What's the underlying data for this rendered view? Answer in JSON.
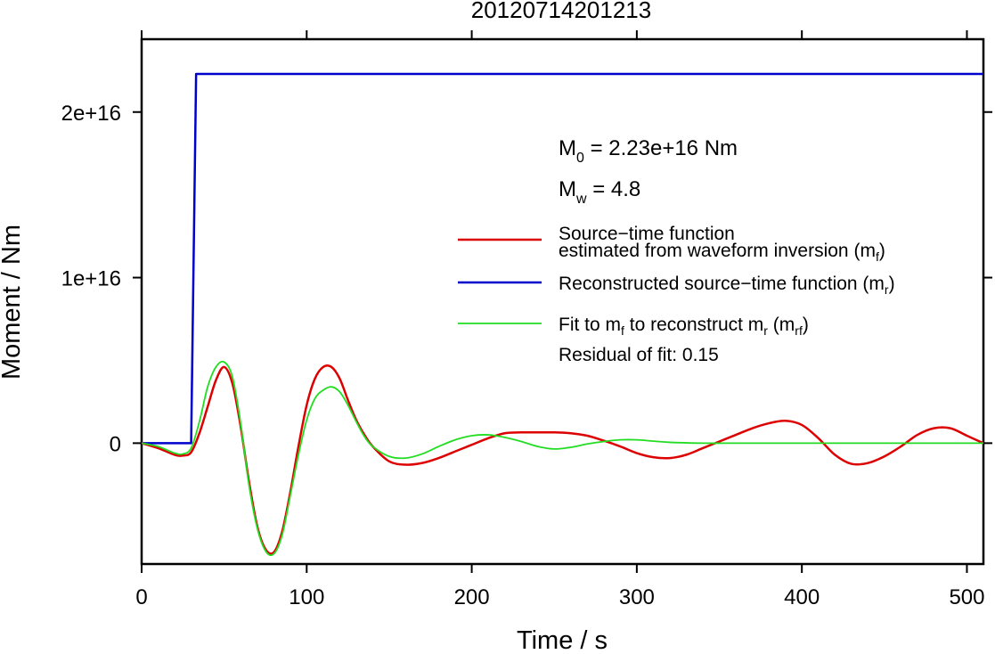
{
  "chart_data": {
    "type": "line",
    "title": "20120714201213",
    "xlabel": "Time / s",
    "ylabel": "Moment / Nm",
    "xlim": [
      0,
      510
    ],
    "ylim": [
      -7300000000000000.0,
      2.44e+16
    ],
    "x_ticks": [
      {
        "value": 0,
        "label": "0"
      },
      {
        "value": 100,
        "label": "100"
      },
      {
        "value": 200,
        "label": "200"
      },
      {
        "value": 300,
        "label": "300"
      },
      {
        "value": 400,
        "label": "400"
      },
      {
        "value": 500,
        "label": "500"
      }
    ],
    "y_ticks": [
      {
        "value": 0,
        "label": "0"
      },
      {
        "value": 1e+16,
        "label": "1e+16"
      },
      {
        "value": 2e+16,
        "label": "2e+16"
      }
    ],
    "grid": false,
    "annotations": {
      "m0_prefix": "M",
      "m0_sub": "0",
      "m0_value": " = 2.23e+16 Nm",
      "mw_prefix": "M",
      "mw_sub": "w",
      "mw_value": " = 4.8",
      "residual": "Residual of fit: 0.15"
    },
    "legend": {
      "position": "right",
      "red_line1": "Source−time function",
      "red_line2_pre": "estimated from waveform inversion (m",
      "red_line2_sub": "f",
      "red_line2_post": ")",
      "blue_pre": "Reconstructed source−time function (m",
      "blue_sub": "r",
      "blue_post": ")",
      "green_pre1": "Fit to m",
      "green_sub1": "f",
      "green_mid": " to reconstruct m",
      "green_sub2": "r",
      "green_mid2": " (m",
      "green_sub3": "rf",
      "green_post": ")"
    },
    "series": [
      {
        "color": "#0000cc",
        "width": 2.5,
        "x": [
          0,
          30,
          33,
          510
        ],
        "y": [
          0,
          0,
          2.23e+16,
          2.23e+16
        ]
      },
      {
        "color": "#dd0000",
        "width": 2.5,
        "x": [
          0,
          10,
          20,
          25,
          30,
          35,
          40,
          45,
          50,
          55,
          60,
          65,
          70,
          75,
          80,
          85,
          90,
          95,
          100,
          105,
          110,
          115,
          120,
          125,
          130,
          135,
          140,
          150,
          160,
          170,
          180,
          190,
          200,
          210,
          220,
          230,
          240,
          250,
          260,
          270,
          280,
          290,
          300,
          310,
          320,
          330,
          340,
          350,
          360,
          370,
          380,
          390,
          400,
          410,
          420,
          430,
          440,
          450,
          460,
          470,
          480,
          490,
          500,
          510
        ],
        "y": [
          0,
          -300000000000000.0,
          -700000000000000.0,
          -750000000000000.0,
          -550000000000000.0,
          600000000000000.0,
          2200000000000000.0,
          3800000000000000.0,
          4600000000000000.0,
          3600000000000000.0,
          1000000000000000.0,
          -2300000000000000.0,
          -5000000000000000.0,
          -6400000000000000.0,
          -6600000000000000.0,
          -5400000000000000.0,
          -3000000000000000.0,
          -200000000000000.0,
          2300000000000000.0,
          3900000000000000.0,
          4600000000000000.0,
          4600000000000000.0,
          3900000000000000.0,
          2600000000000000.0,
          1400000000000000.0,
          500000000000000.0,
          -200000000000000.0,
          -1100000000000000.0,
          -1300000000000000.0,
          -1200000000000000.0,
          -900000000000000.0,
          -500000000000000.0,
          -100000000000000.0,
          300000000000000.0,
          600000000000000.0,
          650000000000000.0,
          650000000000000.0,
          650000000000000.0,
          600000000000000.0,
          450000000000000.0,
          150000000000000.0,
          -200000000000000.0,
          -600000000000000.0,
          -850000000000000.0,
          -900000000000000.0,
          -700000000000000.0,
          -300000000000000.0,
          100000000000000.0,
          500000000000000.0,
          900000000000000.0,
          1200000000000000.0,
          1350000000000000.0,
          1100000000000000.0,
          300000000000000.0,
          -700000000000000.0,
          -1250000000000000.0,
          -1200000000000000.0,
          -800000000000000.0,
          -200000000000000.0,
          500000000000000.0,
          900000000000000.0,
          900000000000000.0,
          450000000000000.0,
          0
        ]
      },
      {
        "color": "#22dd22",
        "width": 1.8,
        "x": [
          0,
          10,
          20,
          25,
          30,
          35,
          40,
          45,
          50,
          55,
          60,
          65,
          70,
          75,
          80,
          85,
          90,
          95,
          100,
          105,
          110,
          115,
          120,
          125,
          130,
          135,
          140,
          150,
          160,
          170,
          180,
          190,
          200,
          210,
          220,
          230,
          240,
          250,
          260,
          270,
          280,
          290,
          300,
          310,
          320,
          340,
          360,
          380,
          400,
          420,
          450,
          480,
          510
        ],
        "y": [
          0,
          -200000000000000.0,
          -600000000000000.0,
          -650000000000000.0,
          -300000000000000.0,
          1300000000000000.0,
          3400000000000000.0,
          4600000000000000.0,
          4900000000000000.0,
          4000000000000000.0,
          1200000000000000.0,
          -2500000000000000.0,
          -5100000000000000.0,
          -6500000000000000.0,
          -6700000000000000.0,
          -5600000000000000.0,
          -3200000000000000.0,
          -700000000000000.0,
          1400000000000000.0,
          2700000000000000.0,
          3200000000000000.0,
          3400000000000000.0,
          3100000000000000.0,
          2300000000000000.0,
          1300000000000000.0,
          400000000000000.0,
          -200000000000000.0,
          -800000000000000.0,
          -900000000000000.0,
          -650000000000000.0,
          -200000000000000.0,
          200000000000000.0,
          450000000000000.0,
          500000000000000.0,
          350000000000000.0,
          100000000000000.0,
          -200000000000000.0,
          -350000000000000.0,
          -250000000000000.0,
          -50000000000000.0,
          100000000000000.0,
          200000000000000.0,
          200000000000000.0,
          120000000000000.0,
          50000000000000.0,
          0,
          0,
          0,
          0,
          0,
          0,
          0,
          0
        ]
      }
    ]
  }
}
